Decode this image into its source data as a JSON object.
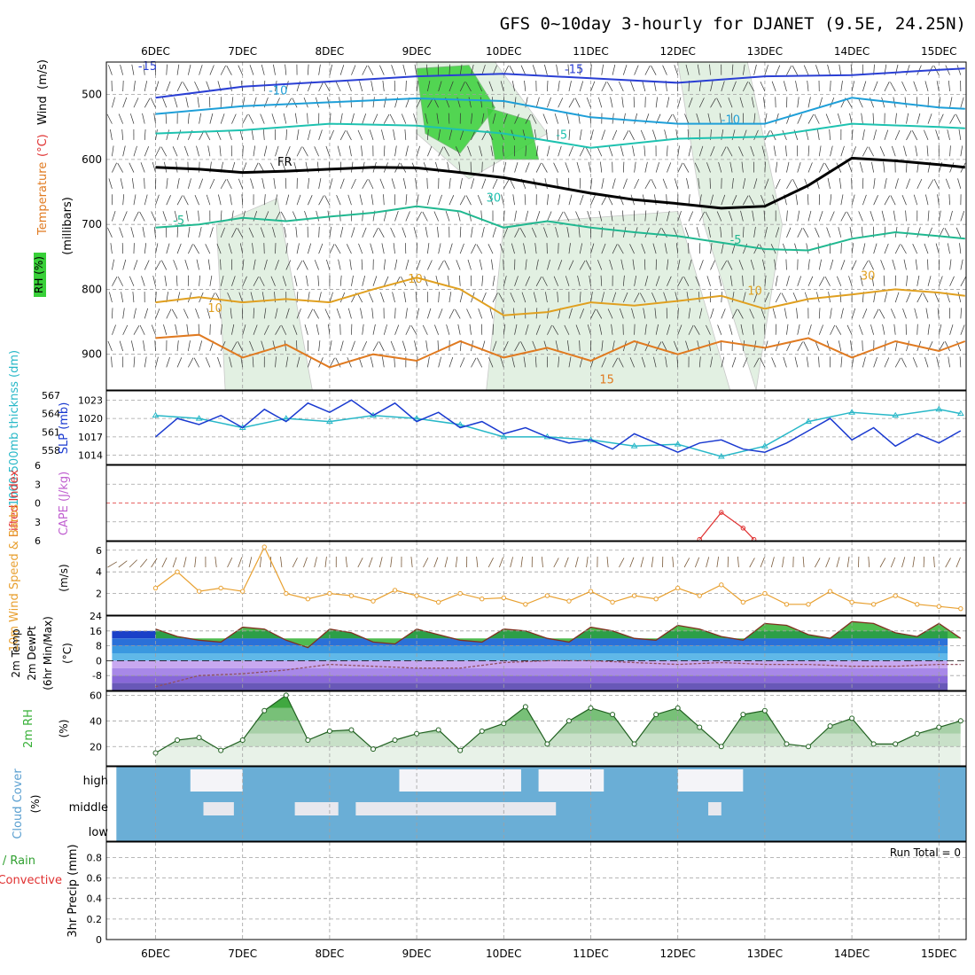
{
  "title": "GFS 0~10day 3-hourly for DJANET (9.5E, 24.25N)",
  "run_total": "Run Total = 0",
  "x_ticks": [
    "6DEC",
    "7DEC",
    "8DEC",
    "9DEC",
    "10DEC",
    "11DEC",
    "12DEC",
    "13DEC",
    "14DEC",
    "15DEC"
  ],
  "colors": {
    "grid": "#a0a0a0",
    "t15": "#2a3fd4",
    "t10": "#1e9fd8",
    "t5": "#1ec2b0",
    "t_warm5": "#20b890",
    "t_warm10": "#e0a020",
    "t_warm15": "#e07a20",
    "t_warm20": "#d6187a",
    "freezing": "#000000",
    "rh": "#38d038",
    "slp": "#1a3ad0",
    "thickness": "#28b8c8",
    "li": "#e03030",
    "wind": "#e8a030",
    "cloud": "#6aaed6",
    "precip_total": "#38c038",
    "precip_conv": "#e03030"
  },
  "chart_data": [
    {
      "type": "line",
      "panel": "upper-air",
      "ylabel_parts": [
        "Temperature",
        "(°C)",
        "Wind",
        "(m/s)"
      ],
      "ylabel_units": "(millibars)",
      "rh_label": "RH (%)",
      "y_ticks": [
        500,
        600,
        700,
        800,
        900
      ],
      "ylim": [
        955,
        450
      ],
      "contour_labels": [
        "-15",
        "-15",
        "-10",
        "-10",
        "-5",
        "FR",
        "-5",
        "-5",
        "10",
        "10",
        "10",
        "15",
        "30",
        "30"
      ],
      "series": [
        {
          "name": "-15",
          "x": [
            0,
            1,
            2,
            3,
            4,
            5,
            6,
            7,
            8,
            9,
            9.3
          ],
          "values": [
            505,
            488,
            480,
            472,
            468,
            475,
            482,
            472,
            470,
            462,
            460
          ]
        },
        {
          "name": "-10",
          "x": [
            0,
            1,
            2,
            3,
            4,
            5,
            6,
            7,
            8,
            9,
            9.3
          ],
          "values": [
            530,
            518,
            512,
            506,
            510,
            535,
            545,
            545,
            505,
            520,
            522
          ]
        },
        {
          "name": "-5",
          "x": [
            0,
            1,
            2,
            3,
            4,
            5,
            6,
            7,
            8,
            9,
            9.3
          ],
          "values": [
            560,
            555,
            545,
            548,
            560,
            582,
            568,
            565,
            545,
            550,
            552
          ]
        },
        {
          "name": "FR",
          "x": [
            0,
            0.5,
            1,
            1.5,
            2,
            2.5,
            3,
            3.5,
            4,
            4.5,
            5,
            5.5,
            6,
            6.5,
            7,
            7.5,
            8,
            8.5,
            9,
            9.3
          ],
          "values": [
            612,
            615,
            620,
            618,
            615,
            612,
            613,
            620,
            628,
            640,
            652,
            662,
            668,
            675,
            672,
            640,
            598,
            602,
            608,
            612
          ]
        },
        {
          "name": "5",
          "x": [
            0,
            0.5,
            1,
            1.5,
            2,
            2.5,
            3,
            3.5,
            4,
            4.5,
            5,
            5.5,
            6,
            6.5,
            7,
            7.5,
            8,
            8.5,
            9,
            9.3
          ],
          "values": [
            705,
            700,
            690,
            695,
            688,
            682,
            672,
            680,
            705,
            695,
            705,
            712,
            718,
            728,
            738,
            740,
            722,
            712,
            718,
            722
          ]
        },
        {
          "name": "10",
          "x": [
            0,
            0.5,
            1,
            1.5,
            2,
            2.5,
            3,
            3.5,
            4,
            4.5,
            5,
            5.5,
            6,
            6.5,
            7,
            7.5,
            8,
            8.5,
            9,
            9.3
          ],
          "values": [
            820,
            812,
            820,
            815,
            820,
            800,
            782,
            800,
            840,
            835,
            820,
            825,
            818,
            810,
            830,
            815,
            808,
            800,
            805,
            810
          ]
        },
        {
          "name": "15",
          "x": [
            0,
            0.5,
            1,
            1.5,
            2,
            2.5,
            3,
            3.5,
            4,
            4.5,
            5,
            5.5,
            6,
            6.5,
            7,
            7.5,
            8,
            8.5,
            9,
            9.3
          ],
          "values": [
            875,
            870,
            905,
            885,
            920,
            900,
            910,
            880,
            905,
            890,
            910,
            880,
            900,
            880,
            890,
            875,
            905,
            880,
            895,
            880
          ]
        }
      ]
    },
    {
      "type": "line",
      "panel": "slp-thickness",
      "ylabel_left": "1000-500mb thicknss (dm)",
      "ylabel_right": "SLP (mb)",
      "thickness_ticks": [
        558,
        561,
        564,
        567
      ],
      "slp_ticks": [
        1014,
        1017,
        1020,
        1023
      ],
      "ylim": [
        1012.5,
        1024.5
      ],
      "series": [
        {
          "name": "SLP (mb)",
          "x": [
            0,
            0.25,
            0.5,
            0.75,
            1,
            1.25,
            1.5,
            1.75,
            2,
            2.25,
            2.5,
            2.75,
            3,
            3.25,
            3.5,
            3.75,
            4,
            4.25,
            4.5,
            4.75,
            5,
            5.25,
            5.5,
            5.75,
            6,
            6.25,
            6.5,
            6.75,
            7,
            7.25,
            7.5,
            7.75,
            8,
            8.25,
            8.5,
            8.75,
            9,
            9.25
          ],
          "values": [
            1017,
            1020,
            1019,
            1020.5,
            1018.5,
            1021.5,
            1019.5,
            1022.5,
            1021,
            1023,
            1020.5,
            1022.5,
            1019.5,
            1021,
            1018.5,
            1019.5,
            1017.5,
            1018.5,
            1017,
            1016,
            1016.5,
            1015,
            1017.5,
            1016,
            1014.5,
            1016,
            1016.5,
            1015,
            1014.5,
            1016,
            1018,
            1020,
            1016.5,
            1018.5,
            1015.5,
            1017.5,
            1016,
            1018
          ]
        },
        {
          "name": "1000-500mb thicknss (dm)",
          "x": [
            0,
            0.5,
            1,
            1.5,
            2,
            2.5,
            3,
            3.5,
            4,
            4.5,
            5,
            5.5,
            6,
            6.5,
            7,
            7.5,
            8,
            8.5,
            9,
            9.25
          ],
          "values": [
            1020.5,
            1020,
            1018.5,
            1020,
            1019.5,
            1020.5,
            1020,
            1019,
            1017,
            1017,
            1016.5,
            1015.5,
            1015.8,
            1013.8,
            1015.5,
            1019.5,
            1021,
            1020.5,
            1021.5,
            1020.8
          ]
        }
      ]
    },
    {
      "type": "line",
      "panel": "lifted-index",
      "ylabel_left": "Lifted Index",
      "ylabel_right": "CAPE (J/kg)",
      "y_ticks": [
        -6,
        -3,
        0,
        3,
        6
      ],
      "ylim": [
        -6,
        6
      ],
      "series": [
        {
          "name": "Lifted Index",
          "x": [
            6.25,
            6.5,
            6.75,
            6.875
          ],
          "values": [
            5.8,
            1.5,
            4.0,
            5.8
          ]
        }
      ]
    },
    {
      "type": "line",
      "panel": "wind-10m",
      "ylabel": "10m Wind Speed & Barbs",
      "units": "(m/s)",
      "y_ticks": [
        2,
        4,
        6
      ],
      "ylim": [
        0,
        6.8
      ],
      "series": [
        {
          "name": "10m Wind Speed",
          "x": [
            0,
            0.25,
            0.5,
            0.75,
            1,
            1.25,
            1.5,
            1.75,
            2,
            2.25,
            2.5,
            2.75,
            3,
            3.25,
            3.5,
            3.75,
            4,
            4.25,
            4.5,
            4.75,
            5,
            5.25,
            5.5,
            5.75,
            6,
            6.25,
            6.5,
            6.75,
            7,
            7.25,
            7.5,
            7.75,
            8,
            8.25,
            8.5,
            8.75,
            9,
            9.25
          ],
          "values": [
            2.5,
            4.0,
            2.2,
            2.5,
            2.2,
            6.3,
            2.0,
            1.5,
            2.0,
            1.8,
            1.3,
            2.3,
            1.8,
            1.2,
            2.0,
            1.5,
            1.6,
            1.0,
            1.8,
            1.3,
            2.2,
            1.2,
            1.8,
            1.5,
            2.5,
            1.8,
            2.8,
            1.2,
            2.0,
            1.0,
            1.0,
            2.2,
            1.2,
            1.0,
            1.8,
            1.0,
            0.8,
            0.6
          ]
        }
      ]
    },
    {
      "type": "area",
      "panel": "temp-2m",
      "ylabel_lines": [
        "2m Temp",
        "2m DewPt",
        "(6hr Min/Max)"
      ],
      "units": "(°C)",
      "y_ticks": [
        -8,
        0,
        8,
        16,
        24
      ],
      "ylim": [
        -16,
        24
      ],
      "series": [
        {
          "name": "2m Temp",
          "x": [
            0,
            0.25,
            0.5,
            0.75,
            1,
            1.25,
            1.5,
            1.75,
            2,
            2.25,
            2.5,
            2.75,
            3,
            3.25,
            3.5,
            3.75,
            4,
            4.25,
            4.5,
            4.75,
            5,
            5.25,
            5.5,
            5.75,
            6,
            6.25,
            6.5,
            6.75,
            7,
            7.25,
            7.5,
            7.75,
            8,
            8.25,
            8.5,
            8.75,
            9,
            9.25
          ],
          "values": [
            17,
            13,
            11,
            10,
            18,
            17,
            11,
            7,
            17,
            15,
            10,
            9,
            17,
            14,
            11,
            10,
            17,
            16,
            12,
            10,
            18,
            16,
            12,
            11,
            19,
            17,
            13,
            11,
            20,
            19,
            14,
            12,
            21,
            20,
            15,
            13,
            20,
            12
          ]
        },
        {
          "name": "2m DewPt",
          "x": [
            0,
            0.5,
            1,
            1.5,
            2,
            2.5,
            3,
            3.5,
            4,
            4.5,
            5,
            5.5,
            6,
            6.5,
            7,
            7.5,
            8,
            8.5,
            9,
            9.25
          ],
          "values": [
            -14,
            -8,
            -7,
            -5,
            -2,
            -3,
            -4,
            -4,
            -1,
            0,
            0,
            -1,
            -2,
            -1,
            -2,
            -2,
            -3,
            -3,
            -2,
            -2
          ]
        }
      ]
    },
    {
      "type": "area",
      "panel": "rh-2m",
      "ylabel": "2m RH",
      "units": "(%)",
      "y_ticks": [
        20,
        40,
        60
      ],
      "ylim": [
        5,
        63
      ],
      "series": [
        {
          "name": "2m RH",
          "x": [
            0,
            0.25,
            0.5,
            0.75,
            1,
            1.25,
            1.5,
            1.75,
            2,
            2.25,
            2.5,
            2.75,
            3,
            3.25,
            3.5,
            3.75,
            4,
            4.25,
            4.5,
            4.75,
            5,
            5.25,
            5.5,
            5.75,
            6,
            6.25,
            6.5,
            6.75,
            7,
            7.25,
            7.5,
            7.75,
            8,
            8.25,
            8.5,
            8.75,
            9,
            9.25
          ],
          "values": [
            15,
            25,
            27,
            17,
            25,
            48,
            60,
            25,
            32,
            33,
            18,
            25,
            30,
            33,
            17,
            32,
            38,
            51,
            22,
            40,
            50,
            45,
            22,
            45,
            50,
            35,
            20,
            45,
            48,
            22,
            20,
            36,
            42,
            22,
            22,
            30,
            35,
            40
          ]
        }
      ]
    },
    {
      "type": "heatmap",
      "panel": "cloud-cover",
      "ylabel": "Cloud Cover",
      "units": "(%)",
      "levels": [
        "high",
        "middle",
        "low"
      ],
      "clear_high": [
        [
          0.4,
          1.0
        ],
        [
          2.8,
          4.2
        ],
        [
          4.4,
          5.15
        ],
        [
          6.0,
          6.75
        ]
      ],
      "clear_middle": [
        [
          0.55,
          0.9
        ],
        [
          1.6,
          2.1
        ],
        [
          2.3,
          4.6
        ],
        [
          6.35,
          6.5
        ]
      ]
    },
    {
      "type": "bar",
      "panel": "precip-3hr",
      "ylabel_left": "Total / Rain",
      "ylabel_conv": "Convective",
      "ylabel_right": "3hr Precip (mm)",
      "y_ticks": [
        0,
        0.2,
        0.4,
        0.6,
        0.8
      ],
      "ylim": [
        0,
        0.95
      ],
      "values": []
    }
  ]
}
